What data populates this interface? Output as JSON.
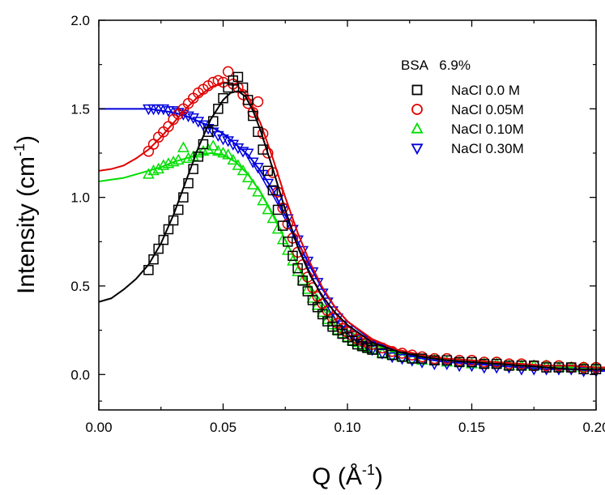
{
  "chart_data": {
    "type": "scatter",
    "xlabel_main": "Q (Å",
    "xlabel_exp": "-1",
    "xlabel_close": ")",
    "ylabel_main": "Intensity (cm",
    "ylabel_exp": "-1",
    "ylabel_close": ")",
    "xlim": [
      0.0,
      0.2
    ],
    "ylim": [
      -0.2,
      2.0
    ],
    "xticks": [
      0.0,
      0.05,
      0.1,
      0.15,
      0.2
    ],
    "xtick_labels": [
      "0.00",
      "0.05",
      "0.10",
      "0.15",
      "0.20"
    ],
    "yticks": [
      0.0,
      0.5,
      1.0,
      1.5,
      2.0
    ],
    "ytick_labels": [
      "0.0",
      "0.5",
      "1.0",
      "1.5",
      "2.0"
    ],
    "legend_title": "BSA   6.9%",
    "legend_position": "top-right",
    "grid": false,
    "series": [
      {
        "name": "NaCl 0.0 M",
        "marker": "square",
        "color": "#000000",
        "points_x": [
          0.02,
          0.022,
          0.024,
          0.026,
          0.028,
          0.03,
          0.032,
          0.034,
          0.036,
          0.038,
          0.04,
          0.042,
          0.044,
          0.046,
          0.048,
          0.05,
          0.052,
          0.054,
          0.056,
          0.058,
          0.06,
          0.062,
          0.064,
          0.066,
          0.068,
          0.07,
          0.072,
          0.074,
          0.076,
          0.078,
          0.08,
          0.082,
          0.084,
          0.086,
          0.088,
          0.09,
          0.092,
          0.094,
          0.096,
          0.098,
          0.1,
          0.102,
          0.104,
          0.106,
          0.108,
          0.11,
          0.114,
          0.118,
          0.122,
          0.126,
          0.13,
          0.135,
          0.14,
          0.145,
          0.15,
          0.155,
          0.16,
          0.165,
          0.17,
          0.175,
          0.18,
          0.185,
          0.19,
          0.195,
          0.2
        ],
        "points_y": [
          0.59,
          0.65,
          0.71,
          0.76,
          0.82,
          0.87,
          0.93,
          1.0,
          1.08,
          1.16,
          1.23,
          1.3,
          1.37,
          1.43,
          1.5,
          1.56,
          1.62,
          1.66,
          1.68,
          1.62,
          1.55,
          1.46,
          1.37,
          1.27,
          1.15,
          1.04,
          0.93,
          0.84,
          0.75,
          0.67,
          0.6,
          0.53,
          0.47,
          0.42,
          0.38,
          0.34,
          0.3,
          0.27,
          0.25,
          0.23,
          0.21,
          0.19,
          0.17,
          0.16,
          0.15,
          0.14,
          0.12,
          0.11,
          0.1,
          0.09,
          0.09,
          0.08,
          0.08,
          0.07,
          0.07,
          0.06,
          0.06,
          0.05,
          0.05,
          0.05,
          0.04,
          0.04,
          0.04,
          0.03,
          0.03
        ],
        "fit_x": [
          0.0,
          0.005,
          0.01,
          0.015,
          0.02,
          0.025,
          0.03,
          0.035,
          0.04,
          0.045,
          0.05,
          0.053,
          0.056,
          0.059,
          0.062,
          0.065,
          0.07,
          0.075,
          0.08,
          0.085,
          0.09,
          0.095,
          0.1,
          0.11,
          0.12,
          0.13,
          0.14,
          0.15,
          0.16,
          0.17,
          0.18,
          0.19,
          0.2,
          0.205
        ],
        "fit_y": [
          0.41,
          0.43,
          0.48,
          0.54,
          0.62,
          0.74,
          0.9,
          1.09,
          1.28,
          1.44,
          1.55,
          1.59,
          1.6,
          1.57,
          1.49,
          1.38,
          1.16,
          0.93,
          0.72,
          0.56,
          0.44,
          0.35,
          0.28,
          0.18,
          0.13,
          0.1,
          0.08,
          0.07,
          0.06,
          0.05,
          0.04,
          0.03,
          0.03,
          0.03
        ]
      },
      {
        "name": "NaCl 0.05M",
        "marker": "circle",
        "color": "#e00000",
        "points_x": [
          0.02,
          0.022,
          0.024,
          0.026,
          0.028,
          0.03,
          0.032,
          0.034,
          0.036,
          0.038,
          0.04,
          0.042,
          0.044,
          0.046,
          0.048,
          0.05,
          0.052,
          0.054,
          0.056,
          0.058,
          0.06,
          0.062,
          0.064,
          0.066,
          0.068,
          0.07,
          0.072,
          0.074,
          0.076,
          0.078,
          0.08,
          0.082,
          0.084,
          0.086,
          0.088,
          0.09,
          0.092,
          0.094,
          0.096,
          0.098,
          0.1,
          0.102,
          0.104,
          0.106,
          0.108,
          0.11,
          0.114,
          0.118,
          0.122,
          0.126,
          0.13,
          0.135,
          0.14,
          0.145,
          0.15,
          0.155,
          0.16,
          0.165,
          0.17,
          0.175,
          0.18,
          0.185,
          0.19,
          0.195,
          0.2
        ],
        "points_y": [
          1.26,
          1.3,
          1.34,
          1.37,
          1.4,
          1.44,
          1.47,
          1.5,
          1.53,
          1.56,
          1.59,
          1.61,
          1.63,
          1.65,
          1.66,
          1.65,
          1.71,
          1.64,
          1.62,
          1.58,
          1.53,
          1.48,
          1.54,
          1.36,
          1.25,
          1.14,
          1.03,
          0.94,
          0.85,
          0.77,
          0.69,
          0.62,
          0.55,
          0.49,
          0.44,
          0.4,
          0.36,
          0.32,
          0.29,
          0.26,
          0.24,
          0.22,
          0.2,
          0.19,
          0.18,
          0.17,
          0.15,
          0.13,
          0.12,
          0.11,
          0.1,
          0.09,
          0.09,
          0.08,
          0.08,
          0.07,
          0.07,
          0.06,
          0.06,
          0.05,
          0.05,
          0.05,
          0.04,
          0.04,
          0.04
        ],
        "fit_x": [
          0.0,
          0.005,
          0.01,
          0.015,
          0.02,
          0.025,
          0.03,
          0.035,
          0.04,
          0.045,
          0.05,
          0.055,
          0.06,
          0.065,
          0.07,
          0.075,
          0.08,
          0.085,
          0.09,
          0.095,
          0.1,
          0.11,
          0.12,
          0.13,
          0.14,
          0.15,
          0.16,
          0.17,
          0.18,
          0.19,
          0.2,
          0.205
        ],
        "fit_y": [
          1.15,
          1.16,
          1.18,
          1.22,
          1.27,
          1.34,
          1.42,
          1.5,
          1.57,
          1.62,
          1.65,
          1.64,
          1.57,
          1.42,
          1.22,
          1.0,
          0.8,
          0.63,
          0.49,
          0.38,
          0.3,
          0.2,
          0.14,
          0.11,
          0.09,
          0.08,
          0.07,
          0.06,
          0.05,
          0.05,
          0.04,
          0.04
        ]
      },
      {
        "name": "NaCl 0.10M",
        "marker": "triangle-up",
        "color": "#00dd00",
        "points_x": [
          0.02,
          0.022,
          0.024,
          0.026,
          0.028,
          0.03,
          0.032,
          0.034,
          0.036,
          0.038,
          0.04,
          0.042,
          0.044,
          0.046,
          0.048,
          0.05,
          0.052,
          0.054,
          0.056,
          0.058,
          0.06,
          0.062,
          0.064,
          0.066,
          0.068,
          0.07,
          0.072,
          0.074,
          0.076,
          0.078,
          0.08,
          0.082,
          0.084,
          0.086,
          0.088,
          0.09,
          0.092,
          0.094,
          0.096,
          0.098,
          0.1,
          0.102,
          0.104,
          0.106,
          0.108,
          0.11,
          0.114,
          0.118,
          0.122,
          0.126,
          0.13,
          0.135,
          0.14,
          0.145,
          0.15,
          0.155,
          0.16,
          0.165,
          0.17,
          0.175,
          0.18,
          0.185,
          0.19,
          0.195,
          0.2
        ],
        "points_y": [
          1.13,
          1.15,
          1.16,
          1.18,
          1.19,
          1.2,
          1.21,
          1.28,
          1.22,
          1.23,
          1.25,
          1.26,
          1.27,
          1.29,
          1.26,
          1.25,
          1.24,
          1.21,
          1.18,
          1.15,
          1.11,
          1.07,
          1.03,
          0.98,
          0.93,
          0.88,
          0.82,
          0.76,
          0.7,
          0.64,
          0.58,
          0.53,
          0.48,
          0.43,
          0.39,
          0.35,
          0.31,
          0.28,
          0.25,
          0.23,
          0.21,
          0.19,
          0.18,
          0.16,
          0.15,
          0.14,
          0.12,
          0.11,
          0.1,
          0.09,
          0.08,
          0.08,
          0.07,
          0.07,
          0.06,
          0.06,
          0.06,
          0.05,
          0.05,
          0.05,
          0.05,
          0.04,
          0.04,
          0.04,
          0.04
        ],
        "fit_x": [
          0.0,
          0.005,
          0.01,
          0.015,
          0.02,
          0.025,
          0.03,
          0.035,
          0.04,
          0.045,
          0.05,
          0.055,
          0.06,
          0.065,
          0.07,
          0.075,
          0.08,
          0.085,
          0.09,
          0.095,
          0.1,
          0.11,
          0.12,
          0.13,
          0.14,
          0.15,
          0.16,
          0.17,
          0.18,
          0.19,
          0.2,
          0.205
        ],
        "fit_y": [
          1.09,
          1.1,
          1.11,
          1.13,
          1.15,
          1.17,
          1.2,
          1.22,
          1.24,
          1.25,
          1.24,
          1.2,
          1.13,
          1.03,
          0.9,
          0.76,
          0.62,
          0.5,
          0.4,
          0.31,
          0.25,
          0.17,
          0.12,
          0.1,
          0.08,
          0.07,
          0.06,
          0.05,
          0.05,
          0.04,
          0.04,
          0.04
        ]
      },
      {
        "name": "NaCl 0.30M",
        "marker": "triangle-down",
        "color": "#0000dd",
        "points_x": [
          0.02,
          0.022,
          0.024,
          0.026,
          0.028,
          0.03,
          0.032,
          0.034,
          0.036,
          0.038,
          0.04,
          0.042,
          0.044,
          0.046,
          0.048,
          0.05,
          0.052,
          0.054,
          0.056,
          0.058,
          0.06,
          0.062,
          0.064,
          0.066,
          0.068,
          0.07,
          0.072,
          0.074,
          0.076,
          0.078,
          0.08,
          0.082,
          0.084,
          0.086,
          0.088,
          0.09,
          0.092,
          0.094,
          0.096,
          0.098,
          0.1,
          0.102,
          0.104,
          0.106,
          0.108,
          0.11,
          0.114,
          0.118,
          0.122,
          0.126,
          0.13,
          0.135,
          0.14,
          0.145,
          0.15,
          0.155,
          0.16,
          0.165,
          0.17,
          0.175,
          0.18,
          0.185,
          0.19,
          0.195,
          0.2
        ],
        "points_y": [
          1.5,
          1.5,
          1.5,
          1.5,
          1.49,
          1.49,
          1.48,
          1.47,
          1.46,
          1.45,
          1.43,
          1.41,
          1.39,
          1.37,
          1.35,
          1.33,
          1.32,
          1.3,
          1.28,
          1.26,
          1.25,
          1.2,
          1.17,
          1.13,
          1.08,
          1.04,
          0.99,
          0.94,
          0.88,
          0.82,
          0.76,
          0.7,
          0.64,
          0.58,
          0.52,
          0.46,
          0.41,
          0.36,
          0.32,
          0.28,
          0.25,
          0.22,
          0.2,
          0.18,
          0.16,
          0.14,
          0.12,
          0.1,
          0.09,
          0.08,
          0.07,
          0.06,
          0.06,
          0.05,
          0.05,
          0.04,
          0.04,
          0.04,
          0.03,
          0.03,
          0.03,
          0.03,
          0.03,
          0.02,
          0.02
        ],
        "fit_x": [
          0.0,
          0.005,
          0.01,
          0.015,
          0.02,
          0.025,
          0.03,
          0.035,
          0.04,
          0.045,
          0.05,
          0.055,
          0.06,
          0.065,
          0.07,
          0.075,
          0.08,
          0.085,
          0.09,
          0.095,
          0.1,
          0.11,
          0.12,
          0.13,
          0.14,
          0.15,
          0.16,
          0.17,
          0.18,
          0.19,
          0.2,
          0.205
        ],
        "fit_y": [
          1.5,
          1.5,
          1.5,
          1.5,
          1.5,
          1.49,
          1.48,
          1.46,
          1.43,
          1.4,
          1.36,
          1.3,
          1.24,
          1.15,
          1.04,
          0.9,
          0.75,
          0.61,
          0.48,
          0.38,
          0.3,
          0.19,
          0.13,
          0.09,
          0.07,
          0.06,
          0.05,
          0.04,
          0.03,
          0.03,
          0.02,
          0.02
        ]
      }
    ]
  }
}
